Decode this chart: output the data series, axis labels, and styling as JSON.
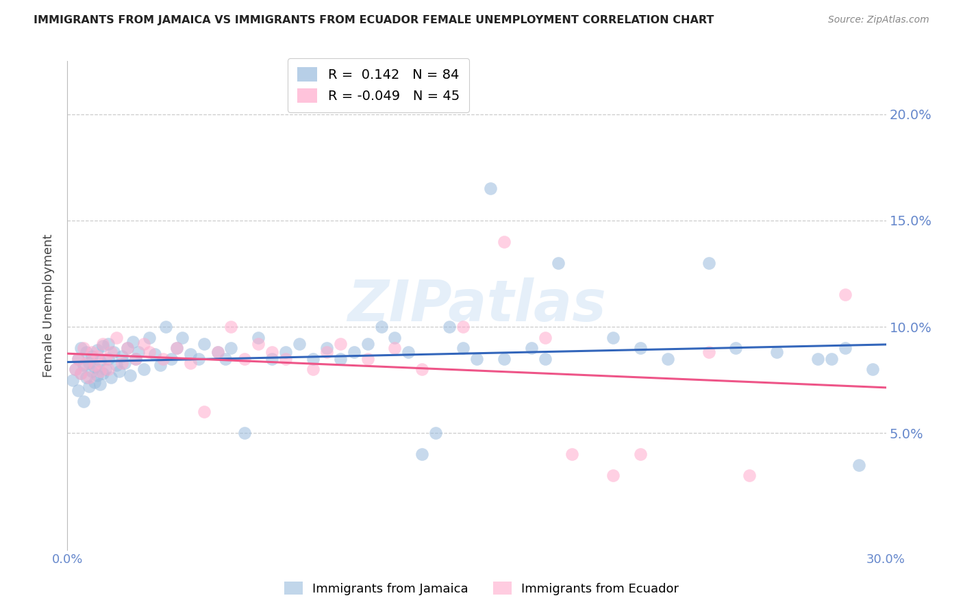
{
  "title": "IMMIGRANTS FROM JAMAICA VS IMMIGRANTS FROM ECUADOR FEMALE UNEMPLOYMENT CORRELATION CHART",
  "source": "Source: ZipAtlas.com",
  "ylabel": "Female Unemployment",
  "ytick_labels": [
    "5.0%",
    "10.0%",
    "15.0%",
    "20.0%"
  ],
  "ytick_values": [
    0.05,
    0.1,
    0.15,
    0.2
  ],
  "xlim": [
    0.0,
    0.3
  ],
  "ylim": [
    -0.005,
    0.225
  ],
  "r_jamaica": 0.142,
  "n_jamaica": 84,
  "r_ecuador": -0.049,
  "n_ecuador": 45,
  "color_jamaica": "#99BBDD",
  "color_ecuador": "#FFAACC",
  "color_line_jamaica": "#3366BB",
  "color_line_ecuador": "#EE5588",
  "color_tick_labels": "#6688CC",
  "jamaica_x": [
    0.002,
    0.003,
    0.004,
    0.004,
    0.005,
    0.005,
    0.006,
    0.006,
    0.007,
    0.007,
    0.008,
    0.008,
    0.009,
    0.009,
    0.01,
    0.01,
    0.011,
    0.011,
    0.012,
    0.012,
    0.013,
    0.013,
    0.014,
    0.015,
    0.015,
    0.016,
    0.017,
    0.018,
    0.019,
    0.02,
    0.021,
    0.022,
    0.023,
    0.024,
    0.025,
    0.026,
    0.028,
    0.03,
    0.032,
    0.034,
    0.036,
    0.038,
    0.04,
    0.042,
    0.045,
    0.048,
    0.05,
    0.055,
    0.058,
    0.06,
    0.065,
    0.07,
    0.075,
    0.08,
    0.085,
    0.09,
    0.095,
    0.1,
    0.105,
    0.11,
    0.115,
    0.12,
    0.125,
    0.13,
    0.135,
    0.14,
    0.145,
    0.15,
    0.155,
    0.16,
    0.17,
    0.175,
    0.18,
    0.2,
    0.21,
    0.22,
    0.235,
    0.245,
    0.26,
    0.275,
    0.28,
    0.285,
    0.29,
    0.295
  ],
  "jamaica_y": [
    0.075,
    0.08,
    0.085,
    0.07,
    0.078,
    0.09,
    0.065,
    0.082,
    0.076,
    0.088,
    0.072,
    0.083,
    0.079,
    0.086,
    0.074,
    0.081,
    0.077,
    0.089,
    0.073,
    0.084,
    0.078,
    0.091,
    0.08,
    0.085,
    0.092,
    0.076,
    0.088,
    0.082,
    0.079,
    0.086,
    0.083,
    0.09,
    0.077,
    0.093,
    0.085,
    0.088,
    0.08,
    0.095,
    0.087,
    0.082,
    0.1,
    0.085,
    0.09,
    0.095,
    0.087,
    0.085,
    0.092,
    0.088,
    0.085,
    0.09,
    0.05,
    0.095,
    0.085,
    0.088,
    0.092,
    0.085,
    0.09,
    0.085,
    0.088,
    0.092,
    0.1,
    0.095,
    0.088,
    0.04,
    0.05,
    0.1,
    0.09,
    0.085,
    0.165,
    0.085,
    0.09,
    0.085,
    0.13,
    0.095,
    0.09,
    0.085,
    0.13,
    0.09,
    0.088,
    0.085,
    0.085,
    0.09,
    0.035,
    0.08
  ],
  "ecuador_x": [
    0.003,
    0.004,
    0.005,
    0.006,
    0.007,
    0.008,
    0.009,
    0.01,
    0.011,
    0.012,
    0.013,
    0.014,
    0.015,
    0.016,
    0.018,
    0.02,
    0.022,
    0.025,
    0.028,
    0.03,
    0.035,
    0.04,
    0.045,
    0.05,
    0.055,
    0.06,
    0.065,
    0.07,
    0.075,
    0.08,
    0.09,
    0.095,
    0.1,
    0.11,
    0.12,
    0.13,
    0.145,
    0.16,
    0.175,
    0.185,
    0.2,
    0.21,
    0.235,
    0.25,
    0.285
  ],
  "ecuador_y": [
    0.08,
    0.085,
    0.078,
    0.09,
    0.083,
    0.076,
    0.088,
    0.082,
    0.086,
    0.079,
    0.092,
    0.085,
    0.08,
    0.088,
    0.095,
    0.083,
    0.09,
    0.085,
    0.092,
    0.088,
    0.085,
    0.09,
    0.083,
    0.06,
    0.088,
    0.1,
    0.085,
    0.092,
    0.088,
    0.085,
    0.08,
    0.088,
    0.092,
    0.085,
    0.09,
    0.08,
    0.1,
    0.14,
    0.095,
    0.04,
    0.03,
    0.04,
    0.088,
    0.03,
    0.115
  ]
}
